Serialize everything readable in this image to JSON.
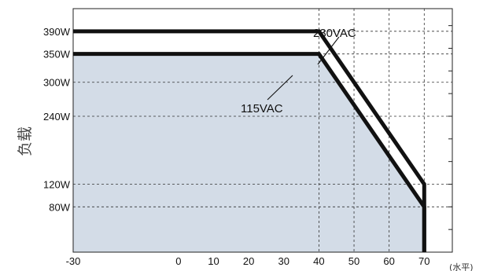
{
  "chart_data": {
    "type": "line",
    "title": "",
    "xlabel": "",
    "x_unit_label": "(水平)",
    "ylabel": "负载",
    "xlim": [
      -30,
      78
    ],
    "ylim": [
      0,
      430
    ],
    "x_ticks": [
      -30,
      0,
      10,
      20,
      30,
      40,
      50,
      60,
      70
    ],
    "x_tick_labels": [
      "-30",
      "0",
      "10",
      "20",
      "30",
      "40",
      "50",
      "60",
      "70"
    ],
    "y_ticks": [
      80,
      120,
      240,
      300,
      350,
      390
    ],
    "y_tick_labels": [
      "80W",
      "120W",
      "240W",
      "300W",
      "350W",
      "390W"
    ],
    "grid": "dashed at labeled ticks",
    "series": [
      {
        "name": "230VAC",
        "x": [
          -30,
          40,
          70,
          70
        ],
        "y": [
          390,
          390,
          120,
          0
        ]
      },
      {
        "name": "115VAC",
        "x": [
          -30,
          40,
          70,
          70
        ],
        "y": [
          350,
          350,
          80,
          0
        ],
        "filled": true
      }
    ],
    "fill_color": "#d3dce7",
    "line_color": "#111111"
  }
}
